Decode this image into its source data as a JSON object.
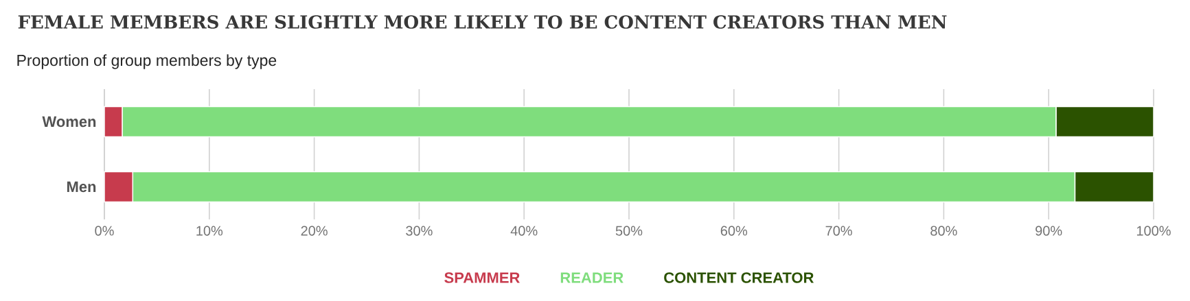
{
  "chart_data": {
    "type": "bar",
    "orientation": "horizontal",
    "stacked": true,
    "title": "FEMALE MEMBERS ARE SLIGHTLY MORE LIKELY TO BE CONTENT CREATORS THAN MEN",
    "subtitle": "Proportion of group members by type",
    "categories": [
      "Women",
      "Men"
    ],
    "series": [
      {
        "name": "SPAMMER",
        "color": "#c73b4d",
        "values": [
          1.7,
          2.7
        ]
      },
      {
        "name": "READER",
        "color": "#7fdd7d",
        "values": [
          89.0,
          89.8
        ]
      },
      {
        "name": "CONTENT CREATOR",
        "color": "#2b5200",
        "values": [
          9.3,
          7.5
        ]
      }
    ],
    "xlim": [
      0,
      100
    ],
    "xticks": [
      {
        "value": 0,
        "label": "0%"
      },
      {
        "value": 10,
        "label": "10%"
      },
      {
        "value": 20,
        "label": "20%"
      },
      {
        "value": 30,
        "label": "30%"
      },
      {
        "value": 40,
        "label": "40%"
      },
      {
        "value": 50,
        "label": "50%"
      },
      {
        "value": 60,
        "label": "60%"
      },
      {
        "value": 70,
        "label": "70%"
      },
      {
        "value": 80,
        "label": "80%"
      },
      {
        "value": 90,
        "label": "90%"
      },
      {
        "value": 100,
        "label": "100%"
      }
    ],
    "grid": "x",
    "legend": "bottom"
  }
}
